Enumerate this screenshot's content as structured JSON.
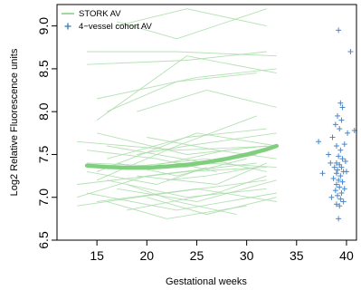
{
  "chart_data": {
    "type": "line",
    "title": "",
    "xlabel": "Gestational weeks",
    "ylabel": "Log2 Relative Fluorescence units",
    "xlim": [
      11,
      41
    ],
    "ylim": [
      6.5,
      9.25
    ],
    "x_ticks": [
      15,
      20,
      25,
      30,
      35,
      40
    ],
    "y_ticks": [
      6.5,
      7.0,
      7.5,
      8.0,
      8.5,
      9.0
    ],
    "x_tick_labels": [
      "15",
      "20",
      "25",
      "30",
      "35",
      "40"
    ],
    "y_tick_labels": [
      "6.5",
      "7.0",
      "7.5",
      "8.0",
      "8.5",
      "9.0"
    ],
    "grid": false,
    "legend_position": "top-left",
    "legend": [
      {
        "label": "STORK AV",
        "marker": "line",
        "color": "#7fcf7f"
      },
      {
        "label": "4−vessel cohort AV",
        "marker": "plus",
        "color": "#4a86c8"
      }
    ],
    "series": [
      {
        "name": "STORK AV",
        "kind": "individual-trajectories",
        "color": "#a8dca8",
        "trajectories": [
          [
            [
              13,
              7.65
            ],
            [
              23,
              7.55
            ],
            [
              33,
              7.6
            ]
          ],
          [
            [
              13,
              7.15
            ],
            [
              24,
              7.3
            ],
            [
              32,
              7.35
            ]
          ],
          [
            [
              13,
              6.9
            ],
            [
              22,
              7.05
            ],
            [
              32,
              7.2
            ]
          ],
          [
            [
              14,
              7.4
            ],
            [
              24,
              7.35
            ],
            [
              31,
              7.5
            ]
          ],
          [
            [
              14,
              7.05
            ],
            [
              23,
              6.85
            ],
            [
              33,
              7.05
            ]
          ],
          [
            [
              14,
              8.7
            ],
            [
              23,
              8.7
            ],
            [
              33,
              8.65
            ]
          ],
          [
            [
              14,
              8.55
            ],
            [
              24,
              8.6
            ],
            [
              32,
              8.7
            ]
          ],
          [
            [
              15,
              7.9
            ],
            [
              24,
              8.65
            ],
            [
              33,
              8.45
            ]
          ],
          [
            [
              15,
              8.15
            ],
            [
              25,
              8.4
            ],
            [
              33,
              8.5
            ]
          ],
          [
            [
              15,
              7.3
            ],
            [
              25,
              7.75
            ],
            [
              33,
              7.6
            ]
          ],
          [
            [
              15,
              7.75
            ],
            [
              24,
              7.5
            ],
            [
              32,
              7.6
            ]
          ],
          [
            [
              15,
              6.95
            ],
            [
              25,
              7.1
            ],
            [
              33,
              6.95
            ]
          ],
          [
            [
              16,
              7.2
            ],
            [
              24,
              7.0
            ],
            [
              32,
              7.1
            ]
          ],
          [
            [
              16,
              7.45
            ],
            [
              24,
              7.7
            ],
            [
              32,
              7.8
            ]
          ],
          [
            [
              16,
              7.6
            ],
            [
              26,
              7.4
            ],
            [
              33,
              7.35
            ]
          ],
          [
            [
              17,
              9.05
            ],
            [
              23,
              8.85
            ],
            [
              32,
              9.2
            ]
          ],
          [
            [
              17,
              9.0
            ],
            [
              24,
              9.2
            ],
            [
              32,
              9.0
            ]
          ],
          [
            [
              17,
              7.1
            ],
            [
              25,
              6.95
            ],
            [
              33,
              7.2
            ]
          ],
          [
            [
              18,
              7.35
            ],
            [
              26,
              7.45
            ],
            [
              32,
              7.3
            ]
          ],
          [
            [
              18,
              6.85
            ],
            [
              27,
              7.05
            ],
            [
              32,
              7.25
            ]
          ],
          [
            [
              19,
              7.5
            ],
            [
              24,
              7.6
            ],
            [
              33,
              7.75
            ]
          ],
          [
            [
              19,
              8.0
            ],
            [
              26,
              8.25
            ],
            [
              33,
              8.05
            ]
          ],
          [
            [
              19,
              7.25
            ],
            [
              27,
              7.15
            ],
            [
              32,
              7.4
            ]
          ],
          [
            [
              20,
              7.0
            ],
            [
              26,
              6.8
            ],
            [
              33,
              7.0
            ]
          ],
          [
            [
              20,
              7.7
            ],
            [
              27,
              7.55
            ],
            [
              33,
              7.45
            ]
          ],
          [
            [
              14,
              7.3
            ],
            [
              21,
              7.15
            ],
            [
              26,
              7.35
            ]
          ],
          [
            [
              14,
              7.55
            ],
            [
              21,
              7.45
            ],
            [
              27,
              7.3
            ]
          ],
          [
            [
              16,
              6.95
            ],
            [
              22,
              6.75
            ],
            [
              30,
              6.9
            ]
          ],
          [
            [
              17,
              7.4
            ],
            [
              23,
              7.25
            ],
            [
              30,
              7.45
            ]
          ],
          [
            [
              18,
              7.15
            ],
            [
              23,
              6.95
            ],
            [
              29,
              6.8
            ]
          ],
          [
            [
              15,
              7.2
            ],
            [
              23,
              7.6
            ],
            [
              31,
              7.95
            ]
          ],
          [
            [
              16,
              8.0
            ],
            [
              23,
              8.35
            ],
            [
              31,
              8.45
            ]
          ],
          [
            [
              20,
              7.35
            ],
            [
              24,
              7.45
            ],
            [
              28,
              7.55
            ]
          ],
          [
            [
              22,
              7.2
            ],
            [
              26,
              7.25
            ],
            [
              31,
              7.35
            ]
          ],
          [
            [
              13,
              7.0
            ],
            [
              20,
              7.25
            ],
            [
              31,
              7.4
            ]
          ]
        ]
      },
      {
        "name": "STORK AV",
        "kind": "mean-fit",
        "color": "#7fcf7f",
        "x": [
          14,
          16,
          18,
          20,
          22,
          24,
          26,
          28,
          30,
          32,
          33
        ],
        "y": [
          7.37,
          7.355,
          7.345,
          7.345,
          7.36,
          7.38,
          7.41,
          7.45,
          7.5,
          7.56,
          7.6
        ]
      },
      {
        "name": "4−vessel cohort AV",
        "kind": "scatter",
        "color": "#4a86c8",
        "points": [
          [
            39.2,
            8.95
          ],
          [
            40.4,
            8.7
          ],
          [
            39.4,
            8.1
          ],
          [
            39.6,
            8.05
          ],
          [
            39.1,
            7.95
          ],
          [
            39.5,
            7.9
          ],
          [
            40.8,
            7.78
          ],
          [
            38.9,
            7.85
          ],
          [
            39.3,
            7.8
          ],
          [
            40.1,
            7.75
          ],
          [
            37.2,
            7.65
          ],
          [
            38.6,
            7.7
          ],
          [
            39.0,
            7.6
          ],
          [
            39.8,
            7.62
          ],
          [
            39.4,
            7.55
          ],
          [
            38.2,
            7.5
          ],
          [
            39.2,
            7.48
          ],
          [
            39.6,
            7.45
          ],
          [
            39.0,
            7.4
          ],
          [
            39.9,
            7.42
          ],
          [
            39.3,
            7.38
          ],
          [
            38.8,
            7.35
          ],
          [
            39.5,
            7.35
          ],
          [
            39.1,
            7.32
          ],
          [
            39.7,
            7.3
          ],
          [
            37.6,
            7.28
          ],
          [
            39.0,
            7.28
          ],
          [
            39.4,
            7.25
          ],
          [
            38.7,
            7.22
          ],
          [
            39.2,
            7.2
          ],
          [
            39.6,
            7.18
          ],
          [
            39.0,
            7.15
          ],
          [
            39.3,
            7.12
          ],
          [
            39.8,
            7.1
          ],
          [
            38.9,
            7.08
          ],
          [
            39.5,
            7.05
          ],
          [
            39.1,
            7.02
          ],
          [
            38.5,
            7.0
          ],
          [
            39.4,
            6.98
          ],
          [
            39.7,
            6.95
          ],
          [
            39.0,
            6.92
          ],
          [
            39.3,
            6.9
          ],
          [
            39.2,
            6.75
          ],
          [
            40.0,
            7.3
          ],
          [
            38.4,
            7.4
          ]
        ]
      }
    ]
  }
}
